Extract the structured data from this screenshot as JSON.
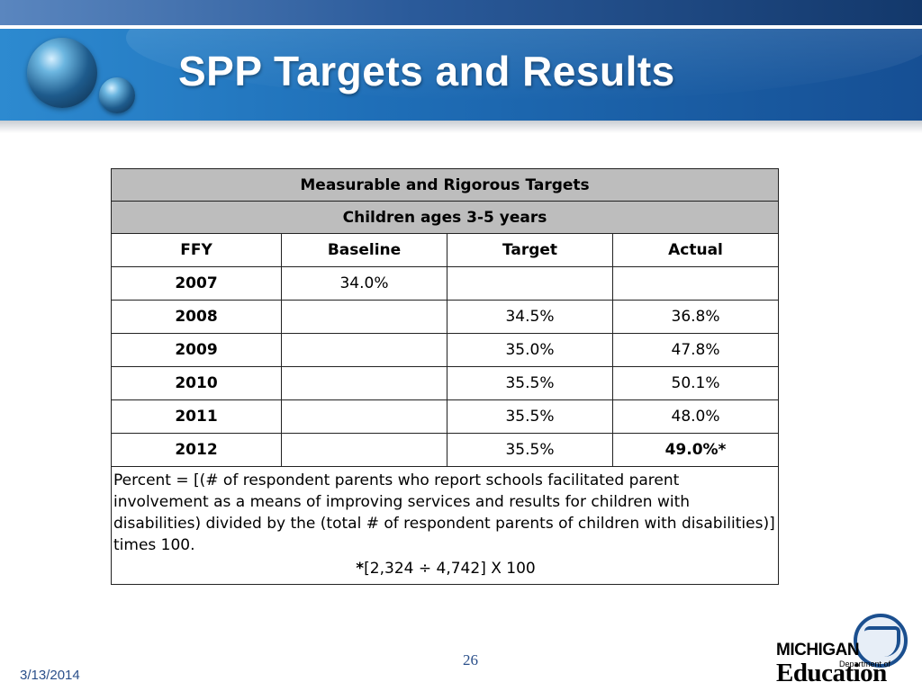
{
  "slide": {
    "title": "SPP Targets and Results",
    "page_number": "26",
    "date": "3/13/2014"
  },
  "table": {
    "caption_1": "Measurable and Rigorous Targets",
    "caption_2": "Children ages 3-5 years",
    "columns": [
      "FFY",
      "Baseline",
      "Target",
      "Actual"
    ],
    "rows": [
      {
        "ffy": "2007",
        "baseline": "34.0%",
        "target": "",
        "actual": ""
      },
      {
        "ffy": "2008",
        "baseline": "",
        "target": "34.5%",
        "actual": "36.8%"
      },
      {
        "ffy": "2009",
        "baseline": "",
        "target": "35.0%",
        "actual": "47.8%"
      },
      {
        "ffy": "2010",
        "baseline": "",
        "target": "35.5%",
        "actual": "50.1%"
      },
      {
        "ffy": "2011",
        "baseline": "",
        "target": "35.5%",
        "actual": "48.0%"
      },
      {
        "ffy": "2012",
        "baseline": "",
        "target": "35.5%",
        "actual": "49.0%*"
      }
    ],
    "note": "Percent = [(# of respondent parents who report schools facilitated parent involvement as a means of improving services and results for children with disabilities) divided by the (total # of respondent parents of children with disabilities)] times 100.",
    "formula_star": "*",
    "formula": "[2,324 ÷ 4,742] X 100"
  },
  "logo": {
    "line1": "MICHIGAN",
    "line2": "Department of",
    "line3": "Education"
  }
}
